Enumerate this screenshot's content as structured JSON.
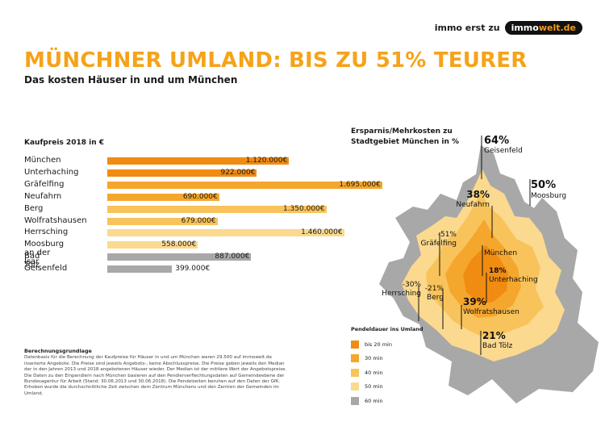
{
  "brand": {
    "text": "immo erst zu",
    "logo_part1": "immo",
    "logo_part2": "welt.de"
  },
  "title": "MÜNCHNER UMLAND: BIS ZU 51% TEURER",
  "subtitle": "Das kosten Häuser in und um München",
  "colors": {
    "c20": "#f08c12",
    "c30": "#f5a62c",
    "c40": "#f8c35a",
    "c50": "#fbd98e",
    "c60": "#a8a8a8"
  },
  "chart_data": {
    "type": "bar",
    "title": "Kaufpreis 2018 in €",
    "categories": [
      "München",
      "Unterhaching",
      "Gräfelfing",
      "Neufahrn",
      "Berg",
      "Wolfratshausen",
      "Herrsching",
      "Moosburg an der Isar",
      "Bad Tölz",
      "Geisenfeld"
    ],
    "values": [
      1120000,
      922000,
      1695000,
      690000,
      1350000,
      679000,
      1460000,
      558000,
      887000,
      399000
    ],
    "labels": [
      "1.120.000€",
      "922.000€",
      "1.695.000€",
      "690.000€",
      "1.350.000€",
      "679.000€",
      "1.460.000€",
      "558.000€",
      "887.000€",
      "399.000€"
    ],
    "commute_class": [
      "c20",
      "c20",
      "c30",
      "c30",
      "c40",
      "c40",
      "c50",
      "c50",
      "c60",
      "c60"
    ],
    "xlim": [
      0,
      1800000
    ]
  },
  "map": {
    "title_line1": "Ersparnis/Mehrkosten zu",
    "title_line2": "Stadtgebiet München in %",
    "labels": [
      {
        "pct": "64%",
        "name": "Geisenfeld"
      },
      {
        "pct": "50%",
        "name": "Moosburg"
      },
      {
        "pct": "38%",
        "name": "Neufahrn"
      },
      {
        "pct": "-51%",
        "name": "Gräfelfing"
      },
      {
        "pct": "",
        "name": "München"
      },
      {
        "pct": "18%",
        "name": "Unterhaching"
      },
      {
        "pct": "-30%",
        "name": "Herrsching"
      },
      {
        "pct": "-21%",
        "name": "Berg"
      },
      {
        "pct": "39%",
        "name": "Wolfratshausen"
      },
      {
        "pct": "21%",
        "name": "Bad Tölz"
      }
    ]
  },
  "legend": {
    "title": "Pendeldauer ins Umland",
    "items": [
      {
        "label": "bis 20 min",
        "color": "#f08c12"
      },
      {
        "label": "30 min",
        "color": "#f5a62c"
      },
      {
        "label": "40 min",
        "color": "#f8c35a"
      },
      {
        "label": "50 min",
        "color": "#fbd98e"
      },
      {
        "label": "60 min",
        "color": "#a8a8a8"
      }
    ]
  },
  "notes": {
    "title": "Berechnungsgrundlage",
    "text": "Datenbasis für die Berechnung der Kaufpreise für Häuser in und um München waren 29.500 auf immowelt.de inserierte Angebote. Die Preise sind jeweils Angebots-, keine Abschlusspreise. Die Preise geben jeweils den Median der in den Jahren 2013 und 2018 angebotenen Häuser wieder. Der Median ist der mittlere Wert der Angebotspreise. Die Daten zu den Einpendlern nach München basieren auf den Pendlerverflechtungsdaten auf Gemeindeebene der Bundesagentur für Arbeit (Stand: 30.06.2013 und 30.06.2018). Die Pendelzeiten beruhen auf den Daten der GfK. Erhoben wurde die durchschnittliche Zeit zwischen dem Zentrum Münchens und den Zentren der Gemeinden im Umland."
  }
}
